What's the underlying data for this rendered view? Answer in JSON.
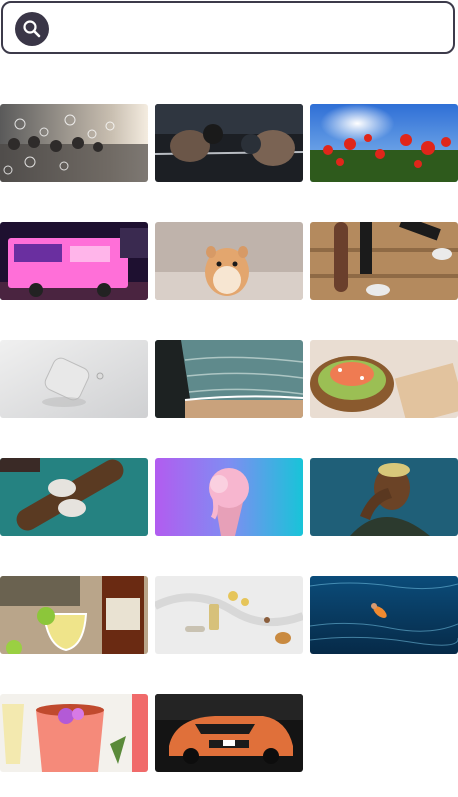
{
  "search": {
    "placeholder": "",
    "value": "",
    "icon": "search-icon",
    "accent": "#3a3647"
  },
  "gallery": {
    "items": [
      {
        "name": "crowd-bubbles-photo"
      },
      {
        "name": "boxing-photo"
      },
      {
        "name": "poppies-sunburst-photo"
      },
      {
        "name": "pink-food-truck-photo"
      },
      {
        "name": "hamster-photo"
      },
      {
        "name": "skateboard-stairs-photo"
      },
      {
        "name": "white-abstract-device-photo"
      },
      {
        "name": "coastline-aerial-photo"
      },
      {
        "name": "salmon-avocado-toast-photo"
      },
      {
        "name": "longboard-sneakers-photo"
      },
      {
        "name": "pink-icecream-photo"
      },
      {
        "name": "man-hand-face-photo"
      },
      {
        "name": "ginger-beer-cocktail-photo"
      },
      {
        "name": "cosmetics-flatlay-photo"
      },
      {
        "name": "underwater-diver-photo"
      },
      {
        "name": "flower-cocktail-photo"
      },
      {
        "name": "race-car-photo"
      }
    ]
  }
}
